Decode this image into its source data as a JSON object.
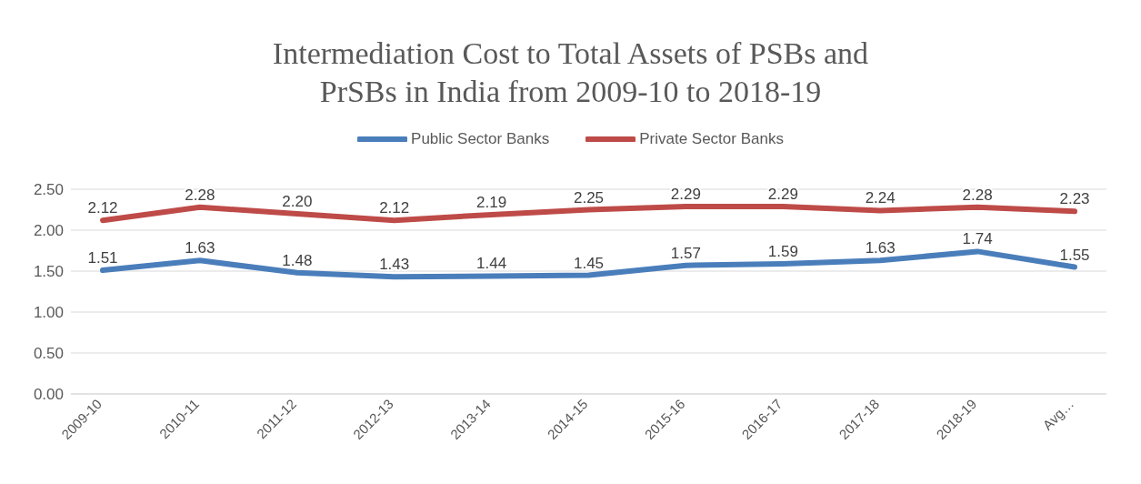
{
  "chart_data": {
    "type": "line",
    "title": "Intermediation Cost to Total Assets of PSBs and PrSBs in India from 2009-10 to 2018-19",
    "categories": [
      "2009-10",
      "2010-11",
      "2011-12",
      "2012-13",
      "2013-14",
      "2014-15",
      "2015-16",
      "2016-17",
      "2017-18",
      "2018-19",
      "Avg…"
    ],
    "series": [
      {
        "name": "Public Sector Banks",
        "color": "#4a7ebb",
        "values": [
          1.51,
          1.63,
          1.48,
          1.43,
          1.44,
          1.45,
          1.57,
          1.59,
          1.63,
          1.74,
          1.55
        ],
        "value_labels": [
          "1.51",
          "1.63",
          "1.48",
          "1.43",
          "1.44",
          "1.45",
          "1.57",
          "1.59",
          "1.63",
          "1.74",
          "1.55"
        ]
      },
      {
        "name": "Private Sector Banks",
        "color": "#be4b48",
        "values": [
          2.12,
          2.28,
          2.2,
          2.12,
          2.19,
          2.25,
          2.29,
          2.29,
          2.24,
          2.28,
          2.23
        ],
        "value_labels": [
          "2.12",
          "2.28",
          "2.20",
          "2.12",
          "2.19",
          "2.25",
          "2.29",
          "2.29",
          "2.24",
          "2.28",
          "2.23"
        ]
      }
    ],
    "ylim": [
      0,
      2.5
    ],
    "yticks": [
      {
        "value": 0,
        "label": "0.00"
      },
      {
        "value": 0.5,
        "label": "0.50"
      },
      {
        "value": 1,
        "label": "1.00"
      },
      {
        "value": 1.5,
        "label": "1.50"
      },
      {
        "value": 2,
        "label": "2.00"
      },
      {
        "value": 2.5,
        "label": "2.50"
      }
    ],
    "grid": "y",
    "legend": "top",
    "marker": "none",
    "line_style": "solid"
  }
}
